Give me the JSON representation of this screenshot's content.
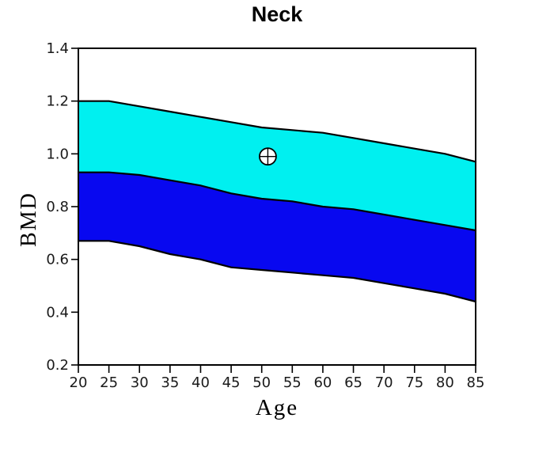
{
  "window": {
    "background": "#ffffff"
  },
  "chart_data": {
    "type": "area",
    "title": "Neck",
    "xlabel": "Age",
    "ylabel": "BMD",
    "xlim": [
      20,
      85
    ],
    "ylim": [
      0.2,
      1.4
    ],
    "x_ticks": [
      20,
      25,
      30,
      35,
      40,
      45,
      50,
      55,
      60,
      65,
      70,
      75,
      80,
      85
    ],
    "y_ticks": [
      0.2,
      0.4,
      0.6,
      0.8,
      1.0,
      1.2,
      1.4
    ],
    "grid": false,
    "legend": false,
    "ages": [
      20,
      25,
      30,
      35,
      40,
      45,
      50,
      55,
      60,
      65,
      70,
      75,
      80,
      85
    ],
    "series": [
      {
        "name": "band-top-curve",
        "values": [
          1.2,
          1.2,
          1.18,
          1.16,
          1.14,
          1.12,
          1.1,
          1.09,
          1.08,
          1.06,
          1.04,
          1.02,
          1.0,
          0.97
        ]
      },
      {
        "name": "band-middle-curve",
        "values": [
          0.93,
          0.93,
          0.92,
          0.9,
          0.88,
          0.85,
          0.83,
          0.82,
          0.8,
          0.79,
          0.77,
          0.75,
          0.73,
          0.71
        ]
      },
      {
        "name": "band-bottom-curve",
        "values": [
          0.67,
          0.67,
          0.65,
          0.62,
          0.6,
          0.57,
          0.56,
          0.55,
          0.54,
          0.53,
          0.51,
          0.49,
          0.47,
          0.44
        ]
      }
    ],
    "bands": [
      {
        "name": "upper-band",
        "between": [
          "band-top-curve",
          "band-middle-curve"
        ],
        "color": "#00F0F0"
      },
      {
        "name": "lower-band",
        "between": [
          "band-middle-curve",
          "band-bottom-curve"
        ],
        "color": "#0808F0"
      }
    ],
    "point": {
      "age": 51,
      "bmd": 0.99,
      "marker": "circle-crosshair",
      "fill": "#ffffff",
      "stroke": "#000000"
    },
    "line_color": "#000000",
    "tick_label_color": "#1a1a1a"
  }
}
